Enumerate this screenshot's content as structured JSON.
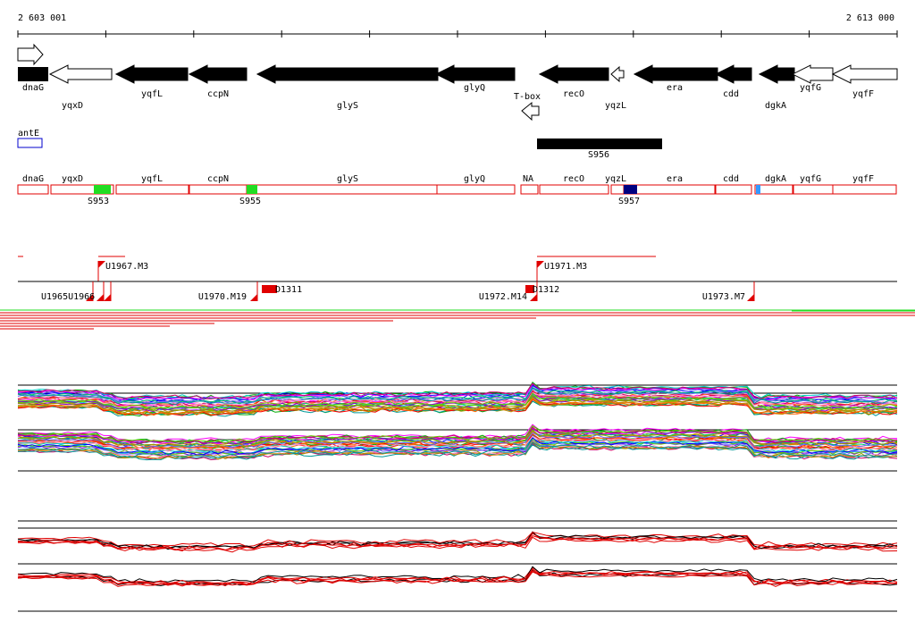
{
  "coords": {
    "start": "2 603 001",
    "end": "2 613 000"
  },
  "colors": {
    "black": "#000000",
    "red": "#e00000",
    "green": "#22dd22",
    "navy": "#000080",
    "lightblue": "#3399ff",
    "blue": "#0000cc"
  },
  "genes": [
    {
      "id": "dnaG",
      "label": "dnaG",
      "filled": true,
      "dir": "right"
    },
    {
      "id": "yqxD",
      "label": "yqxD",
      "filled": false,
      "dir": "left"
    },
    {
      "id": "yqfL",
      "label": "yqfL",
      "filled": true,
      "dir": "left"
    },
    {
      "id": "ccpN",
      "label": "ccpN",
      "filled": true,
      "dir": "left"
    },
    {
      "id": "glyS",
      "label": "glyS",
      "filled": true,
      "dir": "left"
    },
    {
      "id": "glyQ",
      "label": "glyQ",
      "filled": true,
      "dir": "left"
    },
    {
      "id": "recO",
      "label": "recO",
      "filled": true,
      "dir": "left"
    },
    {
      "id": "yqzL",
      "label": "yqzL",
      "filled": false,
      "dir": "left"
    },
    {
      "id": "era",
      "label": "era",
      "filled": true,
      "dir": "left"
    },
    {
      "id": "cdd",
      "label": "cdd",
      "filled": true,
      "dir": "left"
    },
    {
      "id": "dgkA",
      "label": "dgkA",
      "filled": true,
      "dir": "left"
    },
    {
      "id": "yqfG",
      "label": "yqfG",
      "filled": false,
      "dir": "left"
    },
    {
      "id": "yqfF",
      "label": "yqfF",
      "filled": false,
      "dir": "left"
    }
  ],
  "tbox": "T-box",
  "antE": "antE",
  "s956": "S956",
  "operon_boxes": [
    {
      "id": "dnaG",
      "label": "dnaG"
    },
    {
      "id": "yqxD",
      "label": "yqxD"
    },
    {
      "id": "yqfL",
      "label": "yqfL"
    },
    {
      "id": "ccpN",
      "label": "ccpN"
    },
    {
      "id": "glyS",
      "label": "glyS"
    },
    {
      "id": "glyQ",
      "label": "glyQ"
    },
    {
      "id": "NA",
      "label": "NA"
    },
    {
      "id": "recO",
      "label": "recO"
    },
    {
      "id": "yqzL",
      "label": "yqzL"
    },
    {
      "id": "era",
      "label": "era"
    },
    {
      "id": "cdd",
      "label": "cdd"
    },
    {
      "id": "dgkA",
      "label": "dgkA"
    },
    {
      "id": "yqfG",
      "label": "yqfG"
    },
    {
      "id": "yqfF",
      "label": "yqfF"
    }
  ],
  "segments": [
    {
      "id": "s953",
      "label": "S953",
      "color": "#22dd22"
    },
    {
      "id": "s955",
      "label": "S955",
      "color": "#22dd22"
    },
    {
      "id": "s957",
      "label": "S957",
      "color": "#000080"
    }
  ],
  "transcripts": {
    "u1967": "U1967.M3",
    "u1971": "U1971.M3",
    "u1970": "U1970.M19",
    "u1972": "U1972.M14",
    "u1973": "U1973.M7",
    "overlap_label": "U1965U1966",
    "d1311": "D1311",
    "d1312": "D1312"
  }
}
